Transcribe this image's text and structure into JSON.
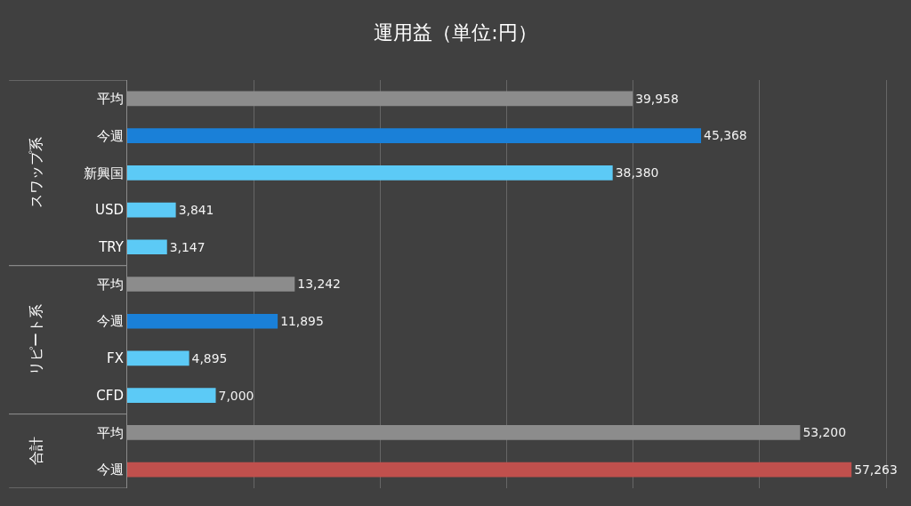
{
  "chart_data": {
    "type": "bar",
    "orientation": "horizontal",
    "title": "運用益（単位:円）",
    "categories": [
      "平均",
      "今週",
      "新興国",
      "USD",
      "TRY",
      "平均",
      "今週",
      "FX",
      "CFD",
      "平均",
      "今週"
    ],
    "values": [
      39958,
      45368,
      38380,
      3841,
      3147,
      13242,
      11895,
      4895,
      7000,
      53200,
      57263
    ],
    "colors": [
      "#8c8c8c",
      "#1a80d8",
      "#5ccaf6",
      "#5ccaf6",
      "#5ccaf6",
      "#8c8c8c",
      "#1a80d8",
      "#5ccaf6",
      "#5ccaf6",
      "#8c8c8c",
      "#c0504d"
    ],
    "annotations": [
      "スワップ系",
      "リピート系",
      "合計"
    ],
    "value_labels": [
      "39,958",
      "45,368",
      "38,380",
      "3,841",
      "3,147",
      "13,242",
      "11,895",
      "4,895",
      "7,000",
      "53,200",
      "57,263"
    ],
    "grid": "x",
    "tick_labels": "y"
  }
}
